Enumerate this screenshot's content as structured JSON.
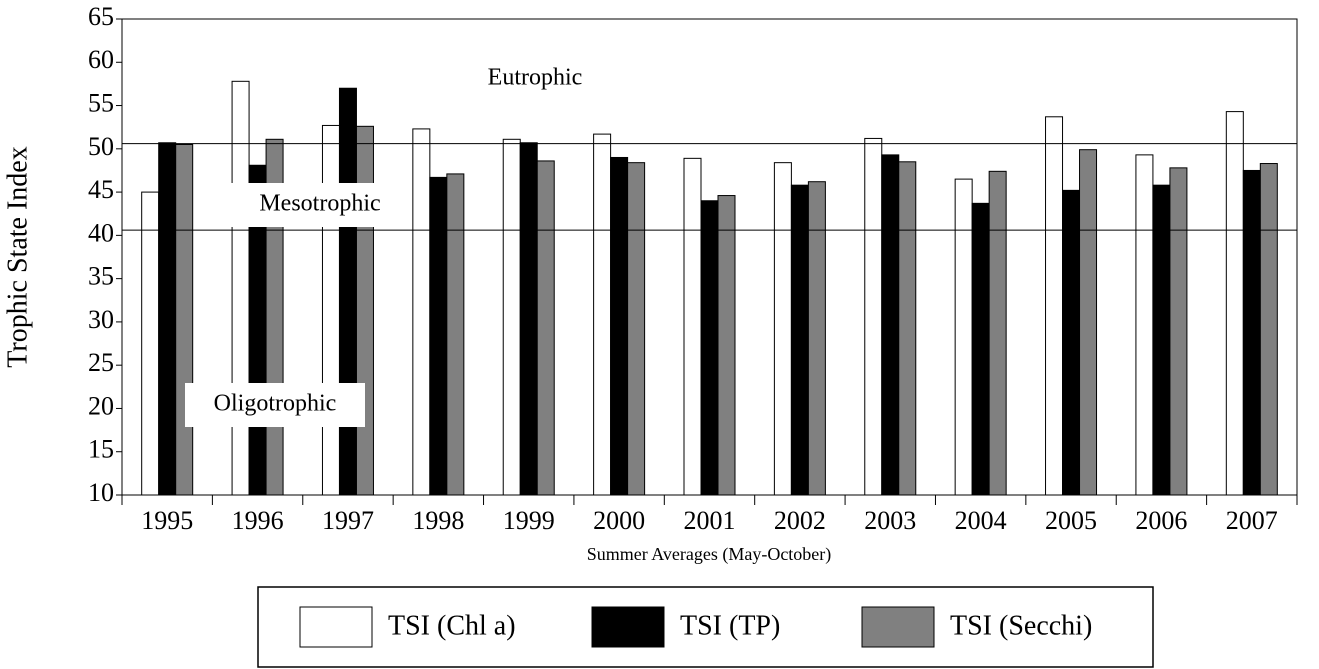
{
  "chart_data": {
    "type": "bar",
    "x_label": "Summer Averages (May-October)",
    "y_label": "Trophic State Index",
    "categories": [
      "1995",
      "1996",
      "1997",
      "1998",
      "1999",
      "2000",
      "2001",
      "2002",
      "2003",
      "2004",
      "2005",
      "2006",
      "2007"
    ],
    "series": [
      {
        "name": "TSI (Chl a)",
        "color": "#ffffff",
        "values": [
          45.0,
          57.8,
          52.7,
          52.3,
          51.1,
          51.7,
          48.9,
          48.4,
          51.2,
          46.5,
          53.7,
          49.3,
          54.3
        ]
      },
      {
        "name": "TSI (TP)",
        "color": "#000000",
        "values": [
          50.7,
          48.1,
          57.0,
          46.7,
          50.7,
          49.0,
          44.0,
          45.8,
          49.3,
          43.7,
          45.2,
          45.8,
          47.5
        ]
      },
      {
        "name": "TSI (Secchi)",
        "color": "#808080",
        "values": [
          50.5,
          51.1,
          52.6,
          47.1,
          48.6,
          48.4,
          44.6,
          46.2,
          48.5,
          47.4,
          49.9,
          47.8,
          48.3
        ]
      }
    ],
    "ylim": [
      10,
      65
    ],
    "yticks": [
      10,
      15,
      20,
      25,
      30,
      35,
      40,
      45,
      50,
      55,
      60,
      65
    ],
    "reference_lines": [
      50.6,
      40.6
    ],
    "annotations": [
      "Eutrophic",
      "Mesotrophic",
      "Oligotrophic"
    ]
  }
}
